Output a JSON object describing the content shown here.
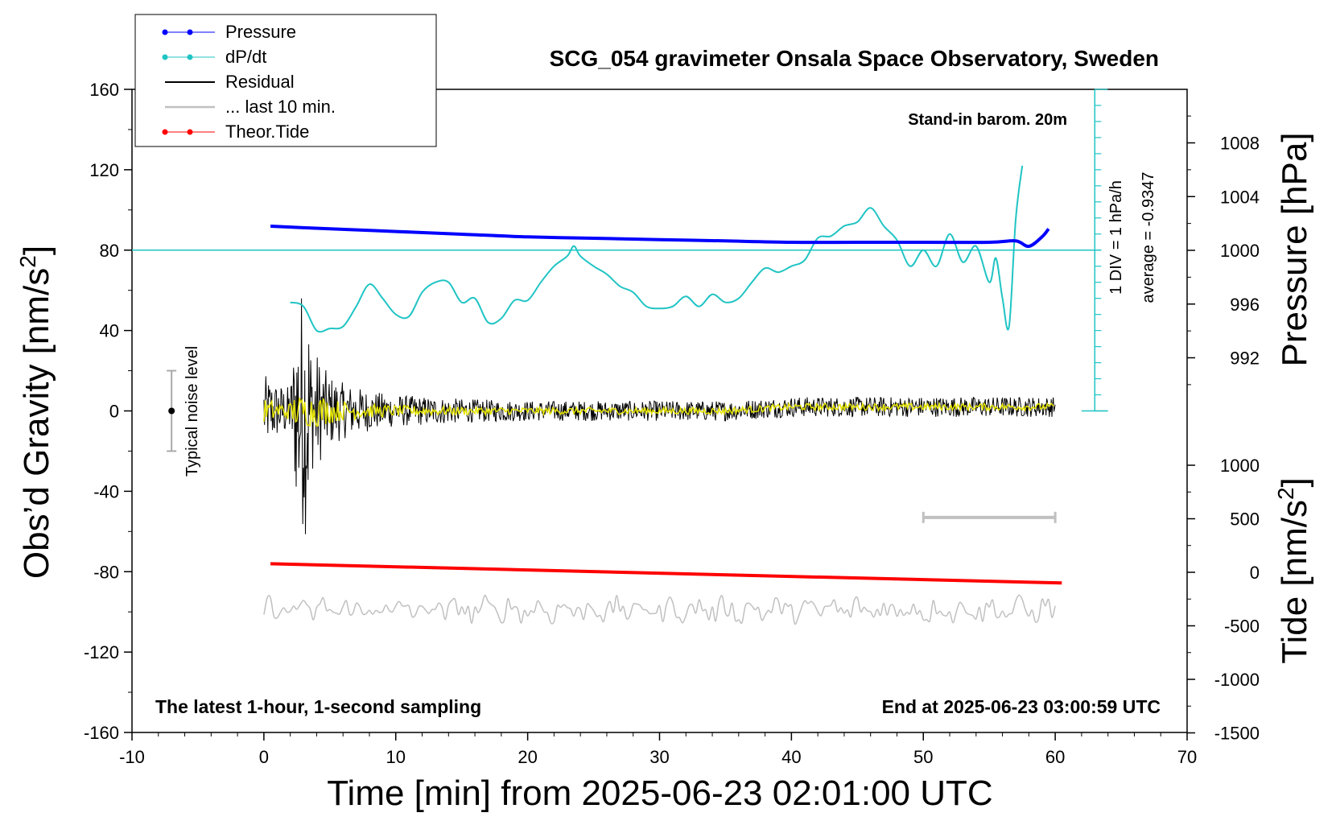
{
  "chart_data": {
    "type": "line",
    "title": "SCG_054 gravimeter Onsala Space Observatory, Sweden",
    "xlabel": "Time [min] from 2025-06-23 02:01:00 UTC",
    "ylabel_left": "Obs’d Gravity [nm/s",
    "ylabel_right_top": "Pressure [hPa]",
    "ylabel_right_bottom": "Tide [nm/s",
    "unit_superscript": "2",
    "xlim": [
      -10,
      70
    ],
    "ylim": [
      -160,
      160
    ],
    "pressure_lim": [
      988,
      1010
    ],
    "tide_lim": [
      -1500,
      1100
    ],
    "x_ticks": [
      "-10",
      "0",
      "10",
      "20",
      "30",
      "40",
      "50",
      "60",
      "70"
    ],
    "y_ticks": [
      "-160",
      "-120",
      "-80",
      "-40",
      "0",
      "40",
      "80",
      "120",
      "160"
    ],
    "pressure_ticks": [
      "992",
      "996",
      "1000",
      "1004",
      "1008"
    ],
    "tide_ticks": [
      "-1500",
      "-1000",
      "-500",
      "0",
      "500",
      "1000"
    ],
    "annotations": {
      "barometer": "Stand-in barom. 20m",
      "div": "1 DIV = 1 hPa/h",
      "average": "average = -0.9347",
      "latest": "The latest 1-hour, 1-second sampling",
      "end": "End at 2025-06-23 03:00:59 UTC",
      "noise": "Typical noise level"
    },
    "legend": {
      "placement": "top-left",
      "entries": [
        "Pressure",
        "dP/dt",
        "Residual",
        "... last 10 min.",
        "Theor.Tide"
      ]
    },
    "colors": {
      "pressure": "#0000ff",
      "dpdt": "#20c4c4",
      "residual": "#000000",
      "last10": "#c0c0c0",
      "tide": "#ff0000",
      "smoothed": "#e6e600"
    },
    "series": [
      {
        "name": "Pressure",
        "axis": "pressure",
        "x": [
          0.5,
          5,
          10,
          15,
          20,
          25,
          30,
          35,
          40,
          45,
          50,
          55,
          57,
          58,
          59,
          59.5
        ],
        "values": [
          1001.8,
          1001.6,
          1001.4,
          1001.2,
          1001.0,
          1000.9,
          1000.8,
          1000.7,
          1000.6,
          1000.6,
          1000.6,
          1000.6,
          1000.7,
          1000.3,
          1001.0,
          1001.6
        ]
      },
      {
        "name": "dP/dt",
        "axis": "gravity",
        "x": [
          2,
          3,
          4,
          5,
          6,
          7,
          8,
          9,
          10,
          11,
          12,
          13,
          14,
          15,
          16,
          17,
          18,
          19,
          20,
          21,
          22,
          23,
          23.5,
          24,
          25,
          26,
          27,
          28,
          29,
          30,
          31,
          32,
          33,
          34,
          35,
          36,
          37,
          38,
          39,
          40,
          41,
          42,
          43,
          44,
          45,
          46,
          47,
          48,
          49,
          50,
          51,
          52,
          53,
          54,
          55,
          55.5,
          56,
          56.5,
          57,
          57.5
        ],
        "values": [
          54,
          52,
          40,
          41,
          42,
          52,
          63,
          56,
          48,
          47,
          59,
          64,
          64,
          54,
          56,
          44,
          46,
          55,
          55,
          64,
          72,
          77,
          82,
          77,
          72,
          68,
          62,
          59,
          52,
          51,
          52,
          57,
          52,
          58,
          54,
          56,
          64,
          71,
          69,
          72,
          75,
          86,
          87,
          92,
          94,
          101,
          92,
          85,
          72,
          80,
          72,
          88,
          74,
          82,
          64,
          76,
          56,
          42,
          95,
          122
        ]
      },
      {
        "name": "Residual",
        "axis": "gravity",
        "x": [
          0,
          1,
          2,
          2.5,
          2.8,
          3,
          3.3,
          3.6,
          4,
          4.5,
          5,
          6,
          7,
          8,
          10,
          15,
          20,
          25,
          30,
          35,
          40,
          45,
          50,
          55,
          60
        ],
        "envelope": [
          18,
          14,
          12,
          50,
          65,
          57,
          67,
          30,
          30,
          22,
          18,
          14,
          12,
          10,
          8,
          6,
          5,
          5,
          5,
          5,
          5,
          5,
          5,
          5,
          5
        ],
        "mean": [
          0,
          0,
          0,
          0,
          0,
          0,
          0,
          0,
          0,
          0,
          0,
          0,
          0,
          0,
          0,
          0,
          0,
          0,
          0,
          0,
          2,
          2,
          2,
          2,
          2
        ]
      },
      {
        "name": "Theor.Tide",
        "axis": "tide",
        "x": [
          0.5,
          60.5
        ],
        "values": [
          80,
          -100
        ]
      },
      {
        "name": "... last 10 min.",
        "axis": "gravity",
        "x": [
          0,
          60
        ],
        "baseline": -99,
        "amplitude": 5
      }
    ],
    "last10_bar_x": [
      50,
      60
    ],
    "last10_bar_y": -53,
    "noise_bar": {
      "x": -7,
      "center": 0,
      "half_width": 20
    }
  }
}
